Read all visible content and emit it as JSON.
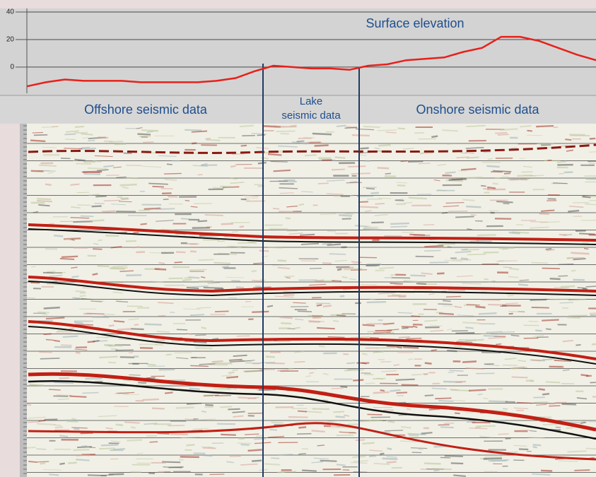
{
  "chart_data": {
    "type": "line",
    "title": "Surface elevation",
    "sections": [
      "Offshore seismic data",
      "Lake\nseismic data",
      "Onshore seismic data"
    ],
    "categories": [
      null,
      null,
      null,
      null,
      null,
      null,
      null,
      null,
      null,
      null,
      null,
      null,
      null,
      null,
      null,
      null,
      null,
      null,
      null,
      null,
      null,
      null,
      null,
      null,
      null,
      null,
      null,
      null,
      null,
      null,
      null
    ],
    "series": [
      {
        "color": "#e8201a",
        "values": [
          -14,
          -11,
          -9,
          -10,
          -10,
          -10,
          -11,
          -11,
          -11,
          -11,
          -10,
          -8,
          -3,
          1,
          0,
          -1,
          -1,
          -2,
          1,
          2,
          5,
          6,
          7,
          11,
          14,
          22,
          22,
          19,
          14,
          9,
          5
        ]
      }
    ],
    "ylim": [
      -18,
      40
    ],
    "yticks": [
      40,
      20,
      0
    ],
    "grid": true
  }
}
